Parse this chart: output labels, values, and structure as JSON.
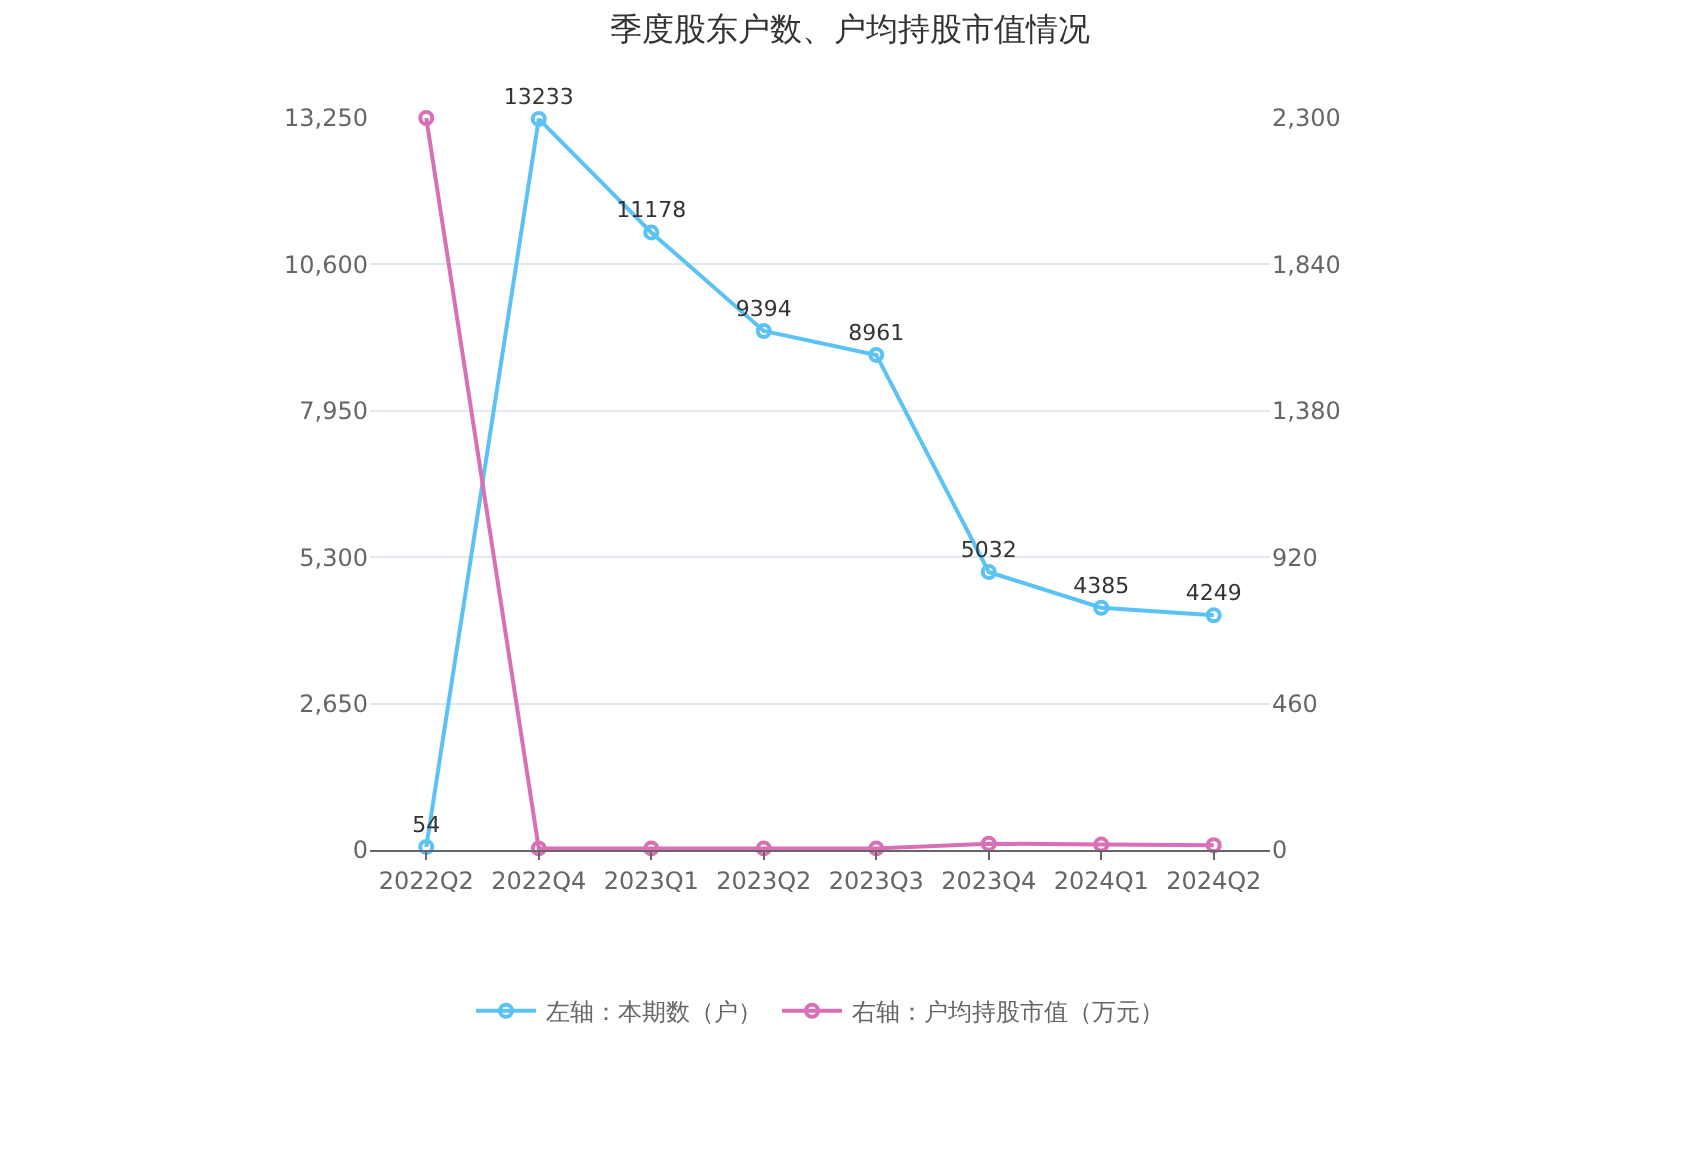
{
  "chart_data": {
    "type": "line",
    "title": "季度股东户数、户均持股市值情况",
    "categories": [
      "2022Q2",
      "2022Q4",
      "2023Q1",
      "2023Q2",
      "2023Q3",
      "2023Q4",
      "2024Q1",
      "2024Q2"
    ],
    "series": [
      {
        "name": "左轴：本期数（户）",
        "color": "#5bc2f5",
        "values": [
          54,
          13233,
          11178,
          9394,
          8961,
          5032,
          4385,
          4249
        ],
        "value_labels": [
          "54",
          "13233",
          "11178",
          "9394",
          "8961",
          "5032",
          "4385",
          "4249"
        ]
      },
      {
        "name": "右轴：户均持股市值（万元）",
        "color": "#d96fb4",
        "axis": "y2",
        "values": [
          2300,
          5,
          5,
          5,
          5,
          20,
          17,
          15
        ]
      }
    ],
    "ylim": [
      0,
      13250
    ],
    "yticks": [
      0,
      {
        "value": 2650,
        "label": "2,650"
      },
      {
        "value": 5300,
        "label": "5,300"
      },
      {
        "value": 7950,
        "label": "7,950"
      },
      {
        "value": 10600,
        "label": "10,600"
      },
      {
        "value": 13250,
        "label": "13,250"
      }
    ],
    "y2lim": [
      0,
      2300
    ],
    "y2ticks": [
      0,
      460,
      920,
      {
        "value": 1380,
        "label": "1,380"
      },
      {
        "value": 1840,
        "label": "1,840"
      },
      {
        "value": 2300,
        "label": "2,300"
      }
    ],
    "grid": "y",
    "legend": "bottom",
    "marker": "circle",
    "line_style": "solid"
  }
}
